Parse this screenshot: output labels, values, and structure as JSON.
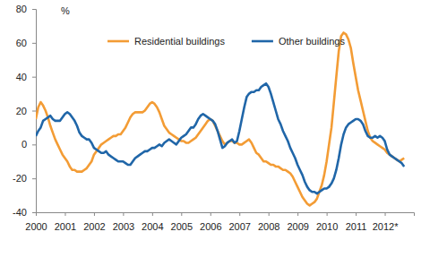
{
  "chart_data": {
    "type": "line",
    "y_label": "%",
    "legend": "top",
    "grid": false,
    "x": [
      2000,
      2000.083,
      2000.167,
      2000.25,
      2000.333,
      2000.417,
      2000.5,
      2000.583,
      2000.667,
      2000.75,
      2000.833,
      2000.917,
      2001,
      2001.083,
      2001.167,
      2001.25,
      2001.333,
      2001.417,
      2001.5,
      2001.583,
      2001.667,
      2001.75,
      2001.833,
      2001.917,
      2002,
      2002.083,
      2002.167,
      2002.25,
      2002.333,
      2002.417,
      2002.5,
      2002.583,
      2002.667,
      2002.75,
      2002.833,
      2002.917,
      2003,
      2003.083,
      2003.167,
      2003.25,
      2003.333,
      2003.417,
      2003.5,
      2003.583,
      2003.667,
      2003.75,
      2003.833,
      2003.917,
      2004,
      2004.083,
      2004.167,
      2004.25,
      2004.333,
      2004.417,
      2004.5,
      2004.583,
      2004.667,
      2004.75,
      2004.833,
      2004.917,
      2005,
      2005.083,
      2005.167,
      2005.25,
      2005.333,
      2005.417,
      2005.5,
      2005.583,
      2005.667,
      2005.75,
      2005.833,
      2005.917,
      2006,
      2006.083,
      2006.167,
      2006.25,
      2006.333,
      2006.417,
      2006.5,
      2006.583,
      2006.667,
      2006.75,
      2006.833,
      2006.917,
      2007,
      2007.083,
      2007.167,
      2007.25,
      2007.333,
      2007.417,
      2007.5,
      2007.583,
      2007.667,
      2007.75,
      2007.833,
      2007.917,
      2008,
      2008.083,
      2008.167,
      2008.25,
      2008.333,
      2008.417,
      2008.5,
      2008.583,
      2008.667,
      2008.75,
      2008.833,
      2008.917,
      2009,
      2009.083,
      2009.167,
      2009.25,
      2009.333,
      2009.417,
      2009.5,
      2009.583,
      2009.667,
      2009.75,
      2009.833,
      2009.917,
      2010,
      2010.083,
      2010.167,
      2010.25,
      2010.333,
      2010.417,
      2010.5,
      2010.583,
      2010.667,
      2010.75,
      2010.833,
      2010.917,
      2011,
      2011.083,
      2011.167,
      2011.25,
      2011.333,
      2011.417,
      2011.5,
      2011.583,
      2011.667,
      2011.75,
      2011.833,
      2011.917,
      2012,
      2012.083,
      2012.167,
      2012.25,
      2012.333,
      2012.417,
      2012.5,
      2012.583,
      2012.667
    ],
    "series": [
      {
        "name": "Residential buildings",
        "color": "#f39c35",
        "values": [
          15,
          22,
          25,
          23,
          20,
          16,
          11,
          7,
          3,
          0,
          -3,
          -6,
          -8,
          -10,
          -13,
          -15,
          -15,
          -16,
          -16,
          -16,
          -15,
          -14,
          -12,
          -10,
          -6,
          -4,
          -2,
          0,
          1,
          2,
          3,
          4,
          5,
          5,
          6,
          6,
          8,
          10,
          13,
          16,
          18,
          19,
          19,
          19,
          19,
          20,
          22,
          24,
          25,
          24,
          22,
          19,
          15,
          11,
          9,
          7,
          6,
          5,
          4,
          3,
          2,
          2,
          1,
          1,
          2,
          3,
          4,
          6,
          8,
          10,
          12,
          14,
          15,
          14,
          11,
          8,
          5,
          2,
          0,
          1,
          2,
          2,
          1,
          1,
          0,
          0,
          1,
          2,
          3,
          1,
          -2,
          -5,
          -6,
          -8,
          -10,
          -10,
          -11,
          -12,
          -12,
          -13,
          -13,
          -14,
          -15,
          -15,
          -16,
          -17,
          -19,
          -22,
          -25,
          -28,
          -31,
          -33,
          -35,
          -36,
          -35,
          -34,
          -32,
          -28,
          -24,
          -18,
          -10,
          0,
          10,
          25,
          40,
          55,
          64,
          66,
          65,
          62,
          57,
          48,
          40,
          32,
          26,
          20,
          14,
          8,
          4,
          2,
          1,
          0,
          -1,
          -2,
          -3,
          -5,
          -6,
          -7,
          -8,
          -9,
          -10,
          -9,
          -8
        ]
      },
      {
        "name": "Other buildings",
        "color": "#2066a8",
        "values": [
          5,
          8,
          10,
          14,
          15,
          16,
          17,
          15,
          14,
          14,
          14,
          16,
          18,
          19,
          18,
          16,
          14,
          11,
          7,
          5,
          4,
          3,
          3,
          1,
          -2,
          -3,
          -4,
          -5,
          -5,
          -4,
          -6,
          -7,
          -8,
          -9,
          -10,
          -10,
          -10,
          -11,
          -12,
          -12,
          -10,
          -8,
          -7,
          -6,
          -5,
          -4,
          -4,
          -3,
          -2,
          -2,
          -1,
          0,
          -1,
          1,
          2,
          3,
          2,
          1,
          0,
          2,
          4,
          5,
          6,
          8,
          10,
          10,
          12,
          15,
          17,
          18,
          17,
          16,
          15,
          14,
          12,
          8,
          3,
          -2,
          -1,
          1,
          2,
          3,
          1,
          2,
          8,
          15,
          22,
          28,
          30,
          31,
          31,
          32,
          32,
          34,
          35,
          36,
          34,
          30,
          25,
          20,
          15,
          12,
          8,
          5,
          2,
          -2,
          -5,
          -8,
          -12,
          -15,
          -18,
          -22,
          -25,
          -27,
          -28,
          -28,
          -29,
          -28,
          -27,
          -26,
          -26,
          -25,
          -23,
          -20,
          -15,
          -8,
          0,
          6,
          10,
          12,
          13,
          14,
          15,
          15,
          14,
          12,
          8,
          5,
          4,
          4,
          5,
          4,
          5,
          4,
          2,
          -3,
          -6,
          -7,
          -8,
          -9,
          -10,
          -11,
          -13
        ]
      }
    ],
    "xlim": [
      2000,
      2013
    ],
    "xticks": [
      2000,
      2001,
      2002,
      2003,
      2004,
      2005,
      2006,
      2007,
      2008,
      2009,
      2010,
      2011,
      {
        "value": 2012,
        "label": "2012*"
      }
    ],
    "ylim": [
      -40,
      80
    ],
    "yticks": [
      -40,
      -20,
      0,
      20,
      40,
      60,
      80
    ]
  }
}
